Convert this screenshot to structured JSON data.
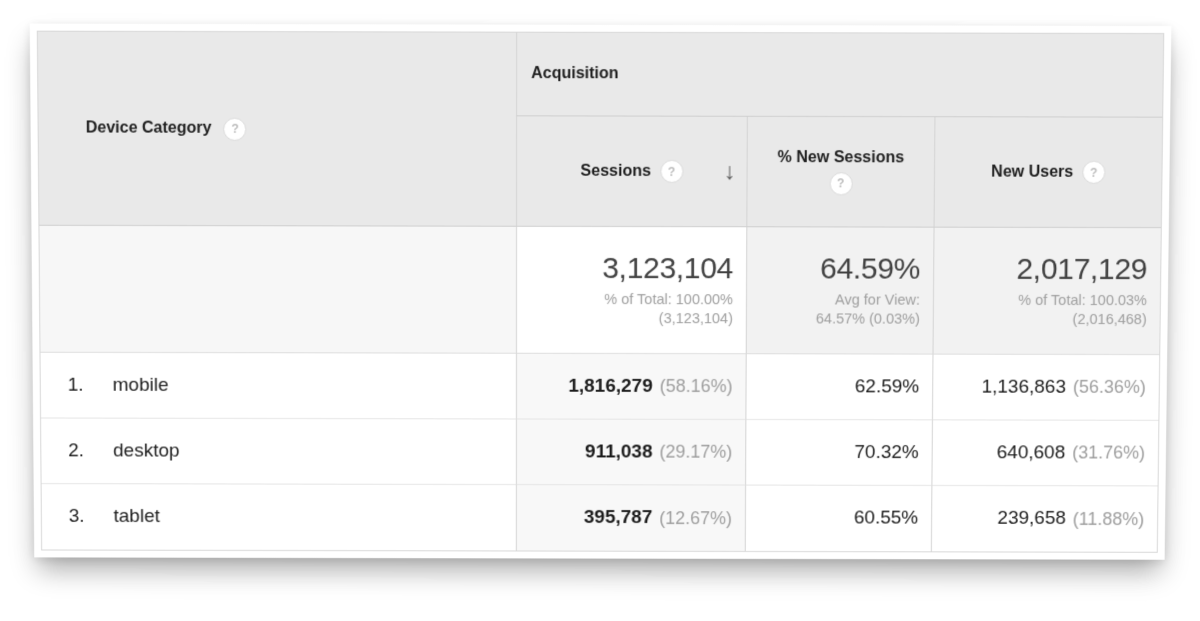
{
  "icons": {
    "help": "?",
    "sort_desc": "↓"
  },
  "colors": {
    "header_bg": "#e9e9e9",
    "summary_bg": "#f2f2f2",
    "sorted_column_bg": "#f8f8f8",
    "muted_text": "#9e9e9e",
    "primary_text": "#1d1d1d"
  },
  "table": {
    "device_category": {
      "label": "Device Category"
    },
    "acquisition_label": "Acquisition",
    "columns": [
      {
        "label": "Sessions",
        "sorted": "desc"
      },
      {
        "label": "% New Sessions"
      },
      {
        "label": "New Users"
      }
    ],
    "summary": {
      "sessions": {
        "value": "3,123,104",
        "line1": "% of Total: 100.00%",
        "line2": "(3,123,104)"
      },
      "new_sessions": {
        "value": "64.59%",
        "line1": "Avg for View:",
        "line2": "64.57% (0.03%)"
      },
      "new_users": {
        "value": "2,017,129",
        "line1": "% of Total: 100.03%",
        "line2": "(2,016,468)"
      }
    },
    "rows": [
      {
        "index": "1.",
        "device": "mobile",
        "sessions": "1,816,279",
        "sessions_pct": "(58.16%)",
        "new_sessions_pct": "62.59%",
        "new_users": "1,136,863",
        "new_users_pct": "(56.36%)"
      },
      {
        "index": "2.",
        "device": "desktop",
        "sessions": "911,038",
        "sessions_pct": "(29.17%)",
        "new_sessions_pct": "70.32%",
        "new_users": "640,608",
        "new_users_pct": "(31.76%)"
      },
      {
        "index": "3.",
        "device": "tablet",
        "sessions": "395,787",
        "sessions_pct": "(12.67%)",
        "new_sessions_pct": "60.55%",
        "new_users": "239,658",
        "new_users_pct": "(11.88%)"
      }
    ]
  }
}
